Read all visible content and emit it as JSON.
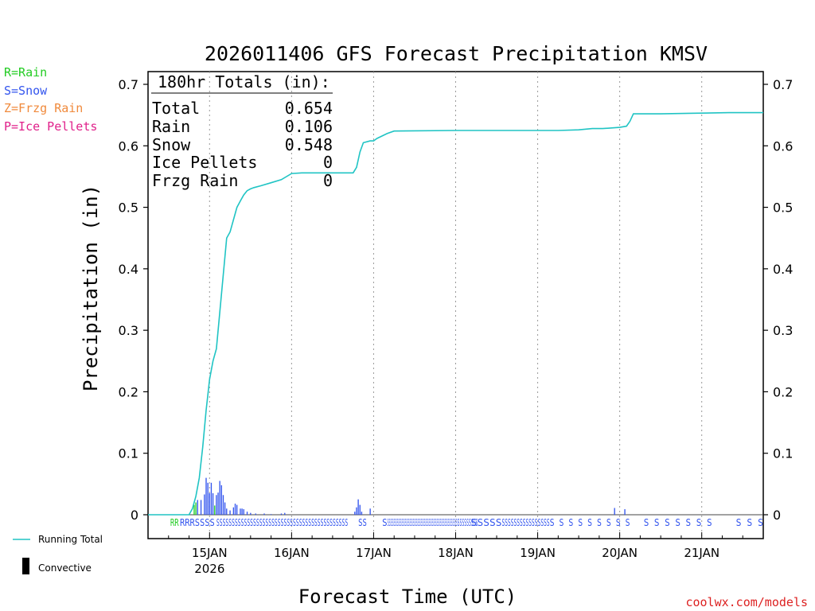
{
  "chart_data": {
    "type": "bar",
    "title": "2026011406 GFS Forecast Precipitation KMSV",
    "xlabel": "Forecast Time (UTC)",
    "ylabel": "Precipitation (in)",
    "ylim": [
      0,
      0.72
    ],
    "yticks": [
      "0",
      "0.1",
      "0.2",
      "0.3",
      "0.4",
      "0.5",
      "0.6",
      "0.7"
    ],
    "xlim_hours": [
      0,
      180
    ],
    "xticks": [
      {
        "hour": 18,
        "label": "15JAN",
        "sublabel": "2026"
      },
      {
        "hour": 42,
        "label": "16JAN"
      },
      {
        "hour": 66,
        "label": "17JAN"
      },
      {
        "hour": 90,
        "label": "18JAN"
      },
      {
        "hour": 114,
        "label": "19JAN"
      },
      {
        "hour": 138,
        "label": "20JAN"
      },
      {
        "hour": 162,
        "label": "21JAN"
      }
    ],
    "legend": [
      {
        "label": "R=Rain",
        "color": "#22cc22"
      },
      {
        "label": "S=Snow",
        "color": "#3355ee"
      },
      {
        "label": "Z=Frzg Rain",
        "color": "#f08a3c"
      },
      {
        "label": "P=Ice Pellets",
        "color": "#e0208a"
      }
    ],
    "bottom_legend": [
      {
        "label": "Running Total",
        "color": "#20c4c4",
        "marker": "line"
      },
      {
        "label": "Convective",
        "color": "#000000",
        "marker": "bar"
      }
    ],
    "totals": {
      "header": "180hr Totals (in):",
      "rows": [
        {
          "label": "Total",
          "value": "0.654"
        },
        {
          "label": "Rain",
          "value": "0.106"
        },
        {
          "label": "Snow",
          "value": "0.548"
        },
        {
          "label": "Ice Pellets",
          "value": "0"
        },
        {
          "label": "Frzg Rain",
          "value": "0"
        }
      ]
    },
    "series": [
      {
        "name": "Rain",
        "color": "#22cc22",
        "x": [
          13.5,
          14,
          19.5
        ],
        "values": [
          0.016,
          0.02,
          0.015
        ]
      },
      {
        "name": "Snow",
        "color": "#3355ee",
        "x": [
          14.5,
          15.5,
          16.5,
          17,
          17.5,
          18,
          18.5,
          19,
          20,
          20.5,
          21,
          21.5,
          22,
          22.5,
          23,
          24,
          25,
          25.5,
          26,
          27,
          27.5,
          28,
          29,
          30,
          31.5,
          34,
          36,
          39,
          40,
          60.5,
          61,
          61.5,
          62,
          62.5,
          65,
          136.5,
          139.5
        ],
        "values": [
          0.024,
          0.024,
          0.033,
          0.06,
          0.052,
          0.035,
          0.052,
          0.035,
          0.032,
          0.036,
          0.055,
          0.048,
          0.032,
          0.02,
          0.01,
          0.007,
          0.012,
          0.018,
          0.016,
          0.01,
          0.01,
          0.009,
          0.005,
          0.003,
          0.002,
          0.002,
          0.001,
          0.002,
          0.003,
          0.005,
          0.012,
          0.025,
          0.016,
          0.005,
          0.01,
          0.011,
          0.009
        ]
      }
    ],
    "running_total": {
      "name": "Running Total",
      "color": "#20c4c4",
      "x": [
        0,
        12,
        13,
        14,
        15,
        16,
        17,
        18,
        19,
        20,
        21,
        22,
        23,
        24,
        25,
        26,
        27,
        28,
        29,
        30,
        31,
        33,
        36,
        39,
        42,
        45,
        48,
        52,
        60,
        61,
        62,
        63,
        65,
        66,
        67,
        70,
        72,
        90,
        120,
        126,
        130,
        133,
        138,
        140,
        141,
        142,
        150,
        160,
        170,
        180
      ],
      "values": [
        0,
        0,
        0.01,
        0.03,
        0.06,
        0.11,
        0.17,
        0.22,
        0.25,
        0.27,
        0.33,
        0.39,
        0.45,
        0.46,
        0.48,
        0.5,
        0.51,
        0.52,
        0.527,
        0.53,
        0.532,
        0.535,
        0.54,
        0.545,
        0.555,
        0.556,
        0.556,
        0.556,
        0.556,
        0.565,
        0.59,
        0.605,
        0.608,
        0.608,
        0.612,
        0.62,
        0.624,
        0.625,
        0.625,
        0.626,
        0.628,
        0.628,
        0.63,
        0.632,
        0.64,
        0.652,
        0.652,
        0.653,
        0.654,
        0.654
      ]
    },
    "precip_type_row": [
      {
        "text": "RR",
        "color": "#22cc22",
        "x_start": 6.5,
        "x_end": 9.0
      },
      {
        "text": "RRRSSSS",
        "color": "#3355ee",
        "x_start": 9.3,
        "x_end": 19.5
      },
      {
        "text": "SSSSSSSSSSSSSSSSSSSSSSSSSSSSSSSSSSSSSSSSSSS",
        "color": "#3355ee",
        "x_start": 20.0,
        "x_end": 58.5
      },
      {
        "text": "SS",
        "color": "#3355ee",
        "x_start": 61.5,
        "x_end": 64.0
      },
      {
        "text": "S",
        "color": "#3355ee",
        "x_start": 68.5,
        "x_end": 70.0
      },
      {
        "text": "SSSSSSSSSSSSSSSSSSSSSSSSSSSSSSSSSSSSSSSSSSSS",
        "color": "#3355ee",
        "x_start": 70.0,
        "x_end": 90.5
      },
      {
        "text": "SSSSSSSSS",
        "color": "#3355ee",
        "x_start": 90.5,
        "x_end": 96.5
      },
      {
        "text": "SSSSS",
        "color": "#3355ee",
        "x_start": 94.5,
        "x_end": 103.5
      },
      {
        "text": "SSSSSSSSSSSSSSSS",
        "color": "#3355ee",
        "x_start": 103.5,
        "x_end": 117.5
      },
      {
        "text": "S S S S S S S S S",
        "color": "#3355ee",
        "x_start": 117.5,
        "x_end": 141.0
      },
      {
        "text": "S S S S S S S",
        "color": "#3355ee",
        "x_start": 145.0,
        "x_end": 165.0
      },
      {
        "text": "S S S",
        "color": "#3355ee",
        "x_start": 172.0,
        "x_end": 180.0
      }
    ],
    "credit": "coolwx.com/models"
  }
}
